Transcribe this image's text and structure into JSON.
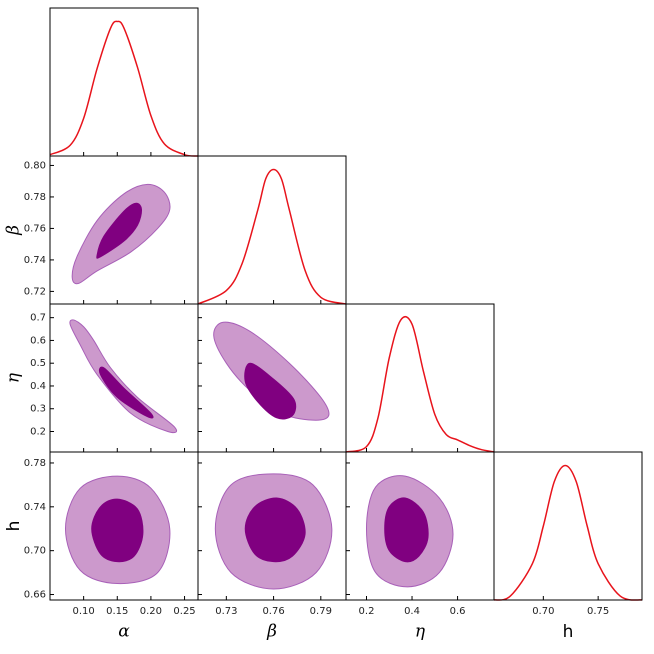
{
  "chart_data": {
    "type": "corner",
    "params": [
      {
        "label": "α",
        "italic": true,
        "lim": [
          0.05,
          0.27
        ],
        "xticks": [
          {
            "value": 0.1,
            "label": "0.10"
          },
          0.15,
          {
            "value": 0.2,
            "label": "0.20"
          },
          0.25
        ],
        "yticks": [],
        "marginal": {
          "x": [
            0.05,
            0.08,
            0.1,
            0.12,
            0.14,
            0.15,
            0.16,
            0.18,
            0.2,
            0.22,
            0.25,
            0.27
          ],
          "values": [
            0.01,
            0.08,
            0.28,
            0.65,
            0.95,
            1.0,
            0.95,
            0.66,
            0.3,
            0.09,
            0.01,
            0.0
          ],
          "ylim": [
            0,
            1.1
          ]
        }
      },
      {
        "label": "β",
        "italic": true,
        "lim": [
          0.712,
          0.806
        ],
        "xticks": [
          0.73,
          0.76,
          0.79
        ],
        "yticks": [
          0.72,
          0.74,
          0.76,
          0.78,
          {
            "value": 0.8,
            "label": "0.80"
          }
        ],
        "marginal": {
          "x": [
            0.712,
            0.73,
            0.74,
            0.75,
            0.755,
            0.76,
            0.765,
            0.77,
            0.78,
            0.79,
            0.806
          ],
          "values": [
            0,
            0.1,
            0.3,
            0.7,
            0.93,
            1.0,
            0.93,
            0.7,
            0.25,
            0.05,
            0
          ],
          "ylim": [
            0,
            1.1
          ]
        }
      },
      {
        "label": "η",
        "italic": true,
        "lim": [
          0.11,
          0.76
        ],
        "xticks": [
          0.2,
          0.4,
          0.6
        ],
        "yticks": [
          0.2,
          0.3,
          0.4,
          0.5,
          0.6,
          0.7
        ],
        "marginal": {
          "x": [
            0.11,
            0.2,
            0.25,
            0.3,
            0.35,
            0.4,
            0.45,
            0.5,
            0.55,
            0.6,
            0.65,
            0.7,
            0.76
          ],
          "values": [
            0,
            0.04,
            0.25,
            0.7,
            0.98,
            0.95,
            0.6,
            0.28,
            0.13,
            0.09,
            0.05,
            0.02,
            0
          ],
          "ylim": [
            0,
            1.1
          ]
        }
      },
      {
        "label": "h",
        "italic": false,
        "lim": [
          0.655,
          0.79
        ],
        "xticks": [
          {
            "value": 0.7,
            "label": "0.70"
          },
          0.75
        ],
        "yticks": [
          0.66,
          {
            "value": 0.7,
            "label": "0.70"
          },
          0.74,
          0.78
        ],
        "marginal": {
          "x": [
            0.655,
            0.67,
            0.69,
            0.7,
            0.71,
            0.72,
            0.73,
            0.74,
            0.75,
            0.77,
            0.79
          ],
          "values": [
            0,
            0.03,
            0.27,
            0.55,
            0.88,
            1.0,
            0.88,
            0.55,
            0.27,
            0.03,
            0
          ],
          "ylim": [
            0,
            1.1
          ]
        }
      }
    ],
    "marginal_color": "#e8141c",
    "contours": [
      {
        "x_param": 0,
        "y_param": 1,
        "levels": [
          {
            "color": "#cc99cc",
            "edge_color": "#a860b8",
            "x": [
              0.083,
              0.09,
              0.12,
              0.16,
              0.195,
              0.22,
              0.228,
              0.21,
              0.17,
              0.12,
              0.092
            ],
            "y": [
              0.729,
              0.742,
              0.765,
              0.782,
              0.788,
              0.783,
              0.772,
              0.76,
              0.745,
              0.733,
              0.725
            ]
          },
          {
            "color": "#800080",
            "edge_color": "#800080",
            "x": [
              0.12,
              0.13,
              0.16,
              0.178,
              0.186,
              0.18,
              0.16,
              0.125
            ],
            "y": [
              0.743,
              0.755,
              0.771,
              0.776,
              0.772,
              0.762,
              0.752,
              0.742
            ]
          }
        ]
      },
      {
        "x_param": 0,
        "y_param": 2,
        "levels": [
          {
            "color": "#cc99cc",
            "edge_color": "#a860b8",
            "x": [
              0.085,
              0.1,
              0.115,
              0.14,
              0.18,
              0.235,
              0.225,
              0.17,
              0.12,
              0.095,
              0.08
            ],
            "y": [
              0.69,
              0.66,
              0.6,
              0.48,
              0.35,
              0.22,
              0.2,
              0.28,
              0.45,
              0.58,
              0.67
            ]
          },
          {
            "color": "#800080",
            "edge_color": "#800080",
            "x": [
              0.13,
              0.16,
              0.2,
              0.195,
              0.15,
              0.125
            ],
            "y": [
              0.48,
              0.39,
              0.28,
              0.265,
              0.35,
              0.45
            ]
          }
        ]
      },
      {
        "x_param": 1,
        "y_param": 2,
        "levels": [
          {
            "color": "#cc99cc",
            "edge_color": "#a860b8",
            "x": [
              0.728,
              0.745,
              0.77,
              0.79,
              0.795,
              0.785,
              0.765,
              0.745,
              0.73,
              0.722
            ],
            "y": [
              0.68,
              0.64,
              0.5,
              0.35,
              0.27,
              0.25,
              0.28,
              0.38,
              0.5,
              0.62
            ]
          },
          {
            "color": "#800080",
            "edge_color": "#800080",
            "x": [
              0.745,
              0.76,
              0.773,
              0.772,
              0.762,
              0.75,
              0.742
            ],
            "y": [
              0.5,
              0.43,
              0.34,
              0.27,
              0.26,
              0.33,
              0.42
            ]
          }
        ]
      },
      {
        "x_param": 0,
        "y_param": 3,
        "levels": [
          {
            "color": "#cc99cc",
            "edge_color": "#a860b8",
            "x": [
              0.15,
              0.2,
              0.228,
              0.21,
              0.15,
              0.095,
              0.073,
              0.095
            ],
            "y": [
              0.768,
              0.757,
              0.72,
              0.68,
              0.67,
              0.682,
              0.72,
              0.757
            ]
          },
          {
            "color": "#800080",
            "edge_color": "#800080",
            "x": [
              0.15,
              0.18,
              0.188,
              0.175,
              0.15,
              0.125,
              0.112,
              0.125
            ],
            "y": [
              0.747,
              0.738,
              0.715,
              0.695,
              0.69,
              0.697,
              0.72,
              0.74
            ]
          }
        ]
      },
      {
        "x_param": 1,
        "y_param": 3,
        "levels": [
          {
            "color": "#cc99cc",
            "edge_color": "#a860b8",
            "x": [
              0.76,
              0.785,
              0.797,
              0.787,
              0.76,
              0.733,
              0.723,
              0.733
            ],
            "y": [
              0.77,
              0.76,
              0.72,
              0.68,
              0.665,
              0.68,
              0.72,
              0.76
            ]
          },
          {
            "color": "#800080",
            "edge_color": "#800080",
            "x": [
              0.762,
              0.775,
              0.78,
              0.772,
              0.76,
              0.748,
              0.742,
              0.748
            ],
            "y": [
              0.748,
              0.738,
              0.715,
              0.695,
              0.69,
              0.697,
              0.72,
              0.74
            ]
          }
        ]
      },
      {
        "x_param": 2,
        "y_param": 3,
        "levels": [
          {
            "color": "#cc99cc",
            "edge_color": "#a860b8",
            "x": [
              0.37,
              0.52,
              0.58,
              0.52,
              0.38,
              0.24,
              0.2,
              0.24
            ],
            "y": [
              0.768,
              0.748,
              0.715,
              0.68,
              0.667,
              0.68,
              0.72,
              0.758
            ]
          },
          {
            "color": "#800080",
            "edge_color": "#800080",
            "x": [
              0.37,
              0.45,
              0.47,
              0.43,
              0.37,
              0.3,
              0.28,
              0.3
            ],
            "y": [
              0.748,
              0.735,
              0.712,
              0.695,
              0.69,
              0.7,
              0.72,
              0.74
            ]
          }
        ]
      }
    ]
  }
}
